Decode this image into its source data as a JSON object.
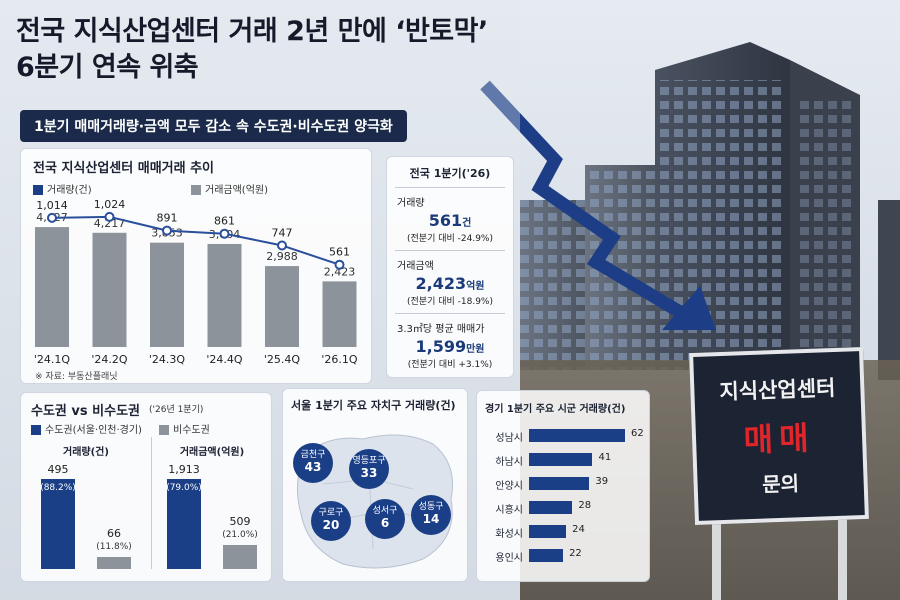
{
  "headline": {
    "line1": "전국 지식산업센터 거래 2년 만에 ‘반토막’",
    "line2": "6분기 연속 위축",
    "subheading": "1분기 매매거래량·금액 모두 감소 속 수도권·비수도권 양극화"
  },
  "trend": {
    "title": "전국 지식산업센터 매매거래 추이",
    "legend_volume": "거래량(건)",
    "legend_amount": "거래금액(억원)",
    "source": "※ 자료: 부동산플래닛"
  },
  "national": {
    "title": "전국 1분기('26)",
    "volume_label": "거래량",
    "volume_value": "561",
    "volume_unit": "건",
    "volume_change": "(전분기 대비 -24.9%)",
    "amount_label": "거래금액",
    "amount_value": "2,423",
    "amount_unit": "억원",
    "amount_change": "(전분기 대비 -18.9%)",
    "price_label": "3.3㎡당 평균 매매가",
    "price_value": "1,599",
    "price_unit": "만원",
    "price_change": "(전분기 대비 +3.1%)"
  },
  "capital": {
    "title": "수도권 vs 비수도권",
    "note": "('26년 1분기)",
    "legend_capital": "수도권(서울·인천·경기)",
    "legend_noncapital": "비수도권",
    "volume_label": "거래량(건)",
    "amount_label": "거래금액(억원)"
  },
  "seoul": {
    "title": "서울 1분기 주요 자치구 거래량(건)"
  },
  "gyeonggi": {
    "title": "경기 1분기 주요 시군 거래량(건)"
  },
  "sign": {
    "line1": "지식산업센터",
    "line2": "매매",
    "line3": "문의"
  },
  "colors": {
    "navy": "#1b3f86",
    "gray": "#8d939b",
    "line": "#2a4f9c",
    "header_bar": "#1b2a4a",
    "sign_red": "#e0262b"
  },
  "chart_data": [
    {
      "type": "bar+line",
      "title": "전국 지식산업센터 매매거래 추이",
      "categories": [
        "'24.1Q",
        "'24.2Q",
        "'24.3Q",
        "'24.4Q",
        "'25.4Q",
        "'26.1Q"
      ],
      "series": [
        {
          "name": "거래량(건)",
          "type": "line",
          "values": [
            1014,
            1024,
            891,
            861,
            747,
            561
          ],
          "labels": [
            "1,014",
            "1,024",
            "891",
            "861",
            "747",
            "561"
          ]
        },
        {
          "name": "거래금액(억원)",
          "type": "bar",
          "values": [
            4427,
            4217,
            3853,
            3804,
            2988,
            2423
          ],
          "labels": [
            "4,427",
            "4,217",
            "3,853",
            "3,804",
            "2,988",
            "2,423"
          ]
        }
      ]
    },
    {
      "type": "bar",
      "title": "수도권 vs 비수도권",
      "panels": [
        {
          "name": "거래량(건)",
          "categories": [
            "수도권(서울·인천·경기)",
            "비수도권"
          ],
          "values": [
            495,
            66
          ],
          "labels": [
            "495",
            "66"
          ],
          "shares": [
            "(88.2%)",
            "(11.8%)"
          ]
        },
        {
          "name": "거래금액(억원)",
          "categories": [
            "수도권(서울·인천·경기)",
            "비수도권"
          ],
          "values": [
            1913,
            509
          ],
          "labels": [
            "1,913",
            "509"
          ],
          "shares": [
            "(79.0%)",
            "(21.0%)"
          ]
        }
      ]
    },
    {
      "type": "bubble-map",
      "title": "서울 1분기 주요 자치구 거래량(건)",
      "items": [
        {
          "name": "금천구",
          "value": 43
        },
        {
          "name": "영등포구",
          "value": 33
        },
        {
          "name": "구로구",
          "value": 20
        },
        {
          "name": "성서구",
          "value": 6
        },
        {
          "name": "성동구",
          "value": 14
        }
      ]
    },
    {
      "type": "bar",
      "orientation": "horizontal",
      "title": "경기 1분기 주요 시군 거래량(건)",
      "categories": [
        "성남시",
        "하남시",
        "안양시",
        "시흥시",
        "화성시",
        "용인시"
      ],
      "values": [
        62,
        41,
        39,
        28,
        24,
        22
      ]
    }
  ]
}
